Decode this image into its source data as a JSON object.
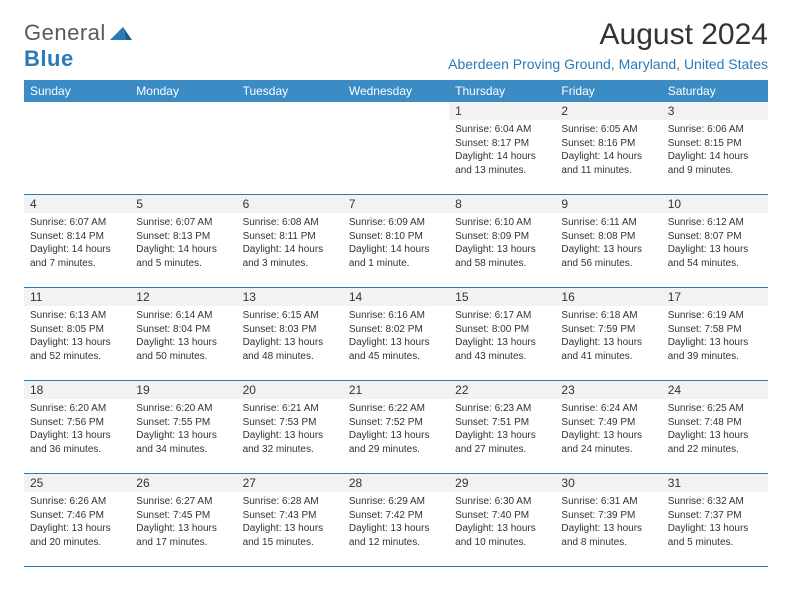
{
  "logo": {
    "text1": "General",
    "text2": "Blue"
  },
  "title": "August 2024",
  "location": "Aberdeen Proving Ground, Maryland, United States",
  "colors": {
    "header_bg": "#3b8bc4",
    "header_text": "#ffffff",
    "divider": "#2b7ab8",
    "daynum_bg": "#f2f2f2",
    "text": "#333333",
    "logo_gray": "#5a5a5a",
    "logo_blue": "#2b7ab8"
  },
  "day_names": [
    "Sunday",
    "Monday",
    "Tuesday",
    "Wednesday",
    "Thursday",
    "Friday",
    "Saturday"
  ],
  "weeks": [
    [
      {
        "n": "",
        "sr": "",
        "ss": "",
        "d1": "",
        "d2": ""
      },
      {
        "n": "",
        "sr": "",
        "ss": "",
        "d1": "",
        "d2": ""
      },
      {
        "n": "",
        "sr": "",
        "ss": "",
        "d1": "",
        "d2": ""
      },
      {
        "n": "",
        "sr": "",
        "ss": "",
        "d1": "",
        "d2": ""
      },
      {
        "n": "1",
        "sr": "Sunrise: 6:04 AM",
        "ss": "Sunset: 8:17 PM",
        "d1": "Daylight: 14 hours",
        "d2": "and 13 minutes."
      },
      {
        "n": "2",
        "sr": "Sunrise: 6:05 AM",
        "ss": "Sunset: 8:16 PM",
        "d1": "Daylight: 14 hours",
        "d2": "and 11 minutes."
      },
      {
        "n": "3",
        "sr": "Sunrise: 6:06 AM",
        "ss": "Sunset: 8:15 PM",
        "d1": "Daylight: 14 hours",
        "d2": "and 9 minutes."
      }
    ],
    [
      {
        "n": "4",
        "sr": "Sunrise: 6:07 AM",
        "ss": "Sunset: 8:14 PM",
        "d1": "Daylight: 14 hours",
        "d2": "and 7 minutes."
      },
      {
        "n": "5",
        "sr": "Sunrise: 6:07 AM",
        "ss": "Sunset: 8:13 PM",
        "d1": "Daylight: 14 hours",
        "d2": "and 5 minutes."
      },
      {
        "n": "6",
        "sr": "Sunrise: 6:08 AM",
        "ss": "Sunset: 8:11 PM",
        "d1": "Daylight: 14 hours",
        "d2": "and 3 minutes."
      },
      {
        "n": "7",
        "sr": "Sunrise: 6:09 AM",
        "ss": "Sunset: 8:10 PM",
        "d1": "Daylight: 14 hours",
        "d2": "and 1 minute."
      },
      {
        "n": "8",
        "sr": "Sunrise: 6:10 AM",
        "ss": "Sunset: 8:09 PM",
        "d1": "Daylight: 13 hours",
        "d2": "and 58 minutes."
      },
      {
        "n": "9",
        "sr": "Sunrise: 6:11 AM",
        "ss": "Sunset: 8:08 PM",
        "d1": "Daylight: 13 hours",
        "d2": "and 56 minutes."
      },
      {
        "n": "10",
        "sr": "Sunrise: 6:12 AM",
        "ss": "Sunset: 8:07 PM",
        "d1": "Daylight: 13 hours",
        "d2": "and 54 minutes."
      }
    ],
    [
      {
        "n": "11",
        "sr": "Sunrise: 6:13 AM",
        "ss": "Sunset: 8:05 PM",
        "d1": "Daylight: 13 hours",
        "d2": "and 52 minutes."
      },
      {
        "n": "12",
        "sr": "Sunrise: 6:14 AM",
        "ss": "Sunset: 8:04 PM",
        "d1": "Daylight: 13 hours",
        "d2": "and 50 minutes."
      },
      {
        "n": "13",
        "sr": "Sunrise: 6:15 AM",
        "ss": "Sunset: 8:03 PM",
        "d1": "Daylight: 13 hours",
        "d2": "and 48 minutes."
      },
      {
        "n": "14",
        "sr": "Sunrise: 6:16 AM",
        "ss": "Sunset: 8:02 PM",
        "d1": "Daylight: 13 hours",
        "d2": "and 45 minutes."
      },
      {
        "n": "15",
        "sr": "Sunrise: 6:17 AM",
        "ss": "Sunset: 8:00 PM",
        "d1": "Daylight: 13 hours",
        "d2": "and 43 minutes."
      },
      {
        "n": "16",
        "sr": "Sunrise: 6:18 AM",
        "ss": "Sunset: 7:59 PM",
        "d1": "Daylight: 13 hours",
        "d2": "and 41 minutes."
      },
      {
        "n": "17",
        "sr": "Sunrise: 6:19 AM",
        "ss": "Sunset: 7:58 PM",
        "d1": "Daylight: 13 hours",
        "d2": "and 39 minutes."
      }
    ],
    [
      {
        "n": "18",
        "sr": "Sunrise: 6:20 AM",
        "ss": "Sunset: 7:56 PM",
        "d1": "Daylight: 13 hours",
        "d2": "and 36 minutes."
      },
      {
        "n": "19",
        "sr": "Sunrise: 6:20 AM",
        "ss": "Sunset: 7:55 PM",
        "d1": "Daylight: 13 hours",
        "d2": "and 34 minutes."
      },
      {
        "n": "20",
        "sr": "Sunrise: 6:21 AM",
        "ss": "Sunset: 7:53 PM",
        "d1": "Daylight: 13 hours",
        "d2": "and 32 minutes."
      },
      {
        "n": "21",
        "sr": "Sunrise: 6:22 AM",
        "ss": "Sunset: 7:52 PM",
        "d1": "Daylight: 13 hours",
        "d2": "and 29 minutes."
      },
      {
        "n": "22",
        "sr": "Sunrise: 6:23 AM",
        "ss": "Sunset: 7:51 PM",
        "d1": "Daylight: 13 hours",
        "d2": "and 27 minutes."
      },
      {
        "n": "23",
        "sr": "Sunrise: 6:24 AM",
        "ss": "Sunset: 7:49 PM",
        "d1": "Daylight: 13 hours",
        "d2": "and 24 minutes."
      },
      {
        "n": "24",
        "sr": "Sunrise: 6:25 AM",
        "ss": "Sunset: 7:48 PM",
        "d1": "Daylight: 13 hours",
        "d2": "and 22 minutes."
      }
    ],
    [
      {
        "n": "25",
        "sr": "Sunrise: 6:26 AM",
        "ss": "Sunset: 7:46 PM",
        "d1": "Daylight: 13 hours",
        "d2": "and 20 minutes."
      },
      {
        "n": "26",
        "sr": "Sunrise: 6:27 AM",
        "ss": "Sunset: 7:45 PM",
        "d1": "Daylight: 13 hours",
        "d2": "and 17 minutes."
      },
      {
        "n": "27",
        "sr": "Sunrise: 6:28 AM",
        "ss": "Sunset: 7:43 PM",
        "d1": "Daylight: 13 hours",
        "d2": "and 15 minutes."
      },
      {
        "n": "28",
        "sr": "Sunrise: 6:29 AM",
        "ss": "Sunset: 7:42 PM",
        "d1": "Daylight: 13 hours",
        "d2": "and 12 minutes."
      },
      {
        "n": "29",
        "sr": "Sunrise: 6:30 AM",
        "ss": "Sunset: 7:40 PM",
        "d1": "Daylight: 13 hours",
        "d2": "and 10 minutes."
      },
      {
        "n": "30",
        "sr": "Sunrise: 6:31 AM",
        "ss": "Sunset: 7:39 PM",
        "d1": "Daylight: 13 hours",
        "d2": "and 8 minutes."
      },
      {
        "n": "31",
        "sr": "Sunrise: 6:32 AM",
        "ss": "Sunset: 7:37 PM",
        "d1": "Daylight: 13 hours",
        "d2": "and 5 minutes."
      }
    ]
  ]
}
